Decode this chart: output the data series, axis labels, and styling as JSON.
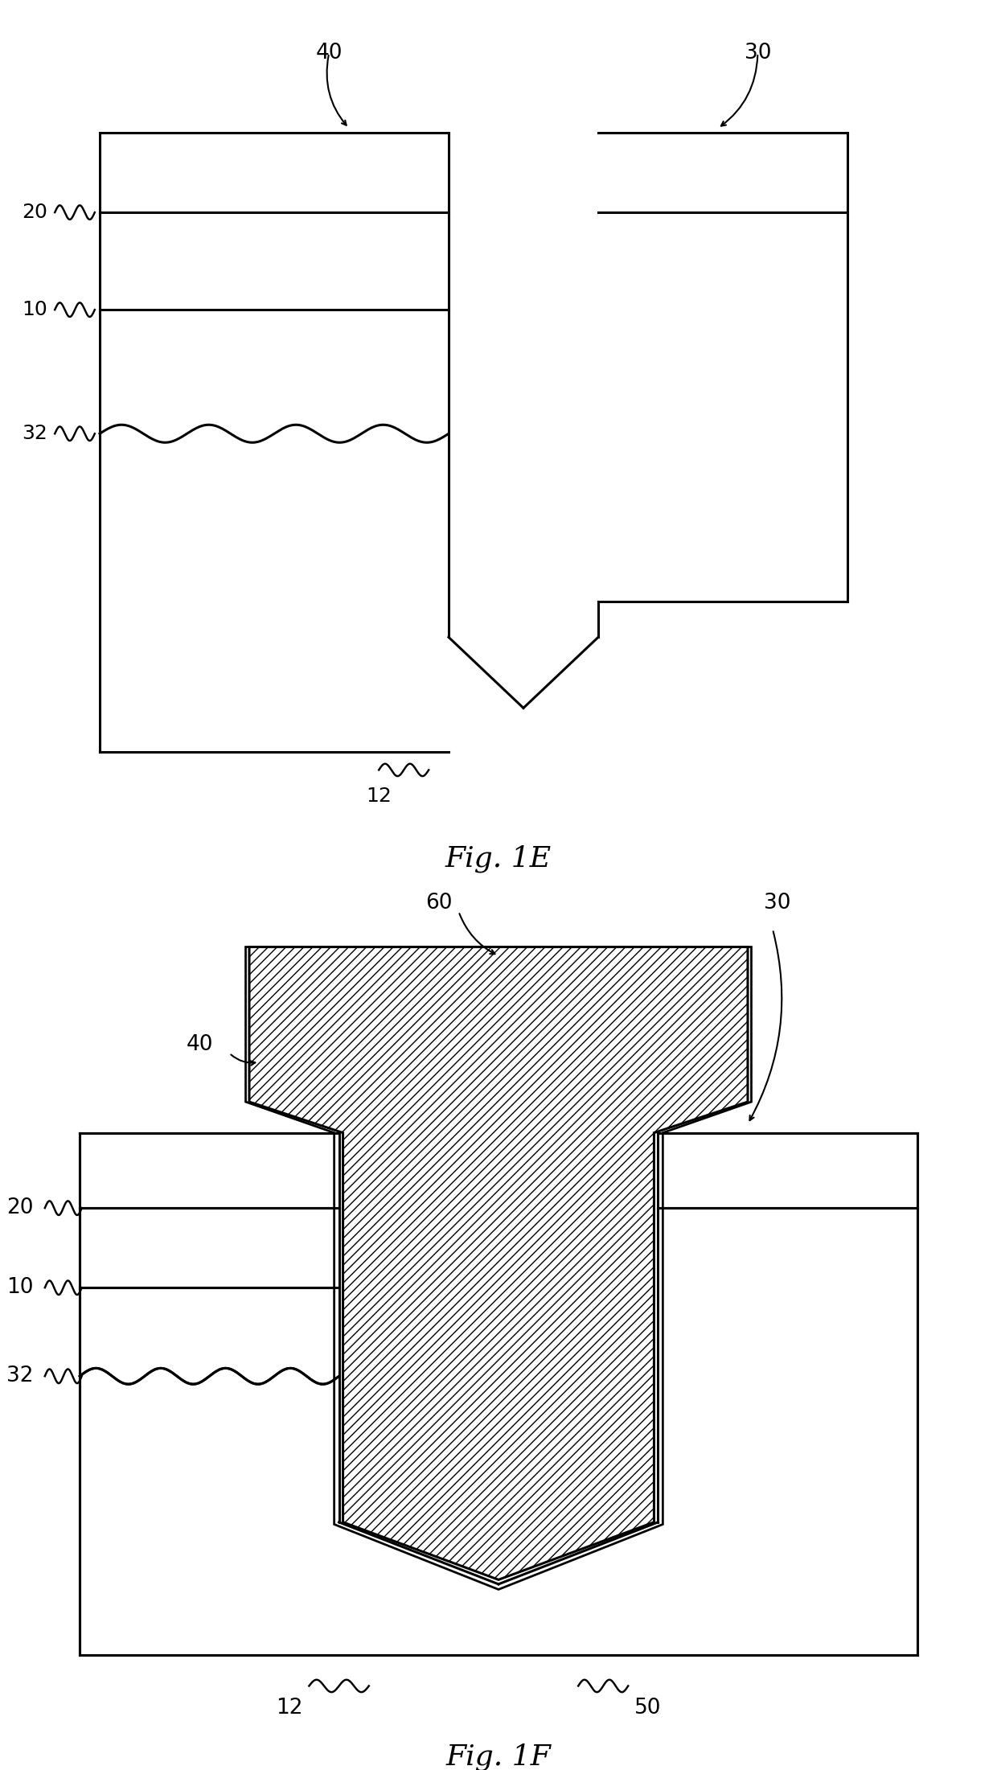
{
  "fig_title_1E": "Fig. 1E",
  "fig_title_1F": "Fig. 1F",
  "bg_color": "#ffffff",
  "line_color": "#000000",
  "line_width": 2.2
}
